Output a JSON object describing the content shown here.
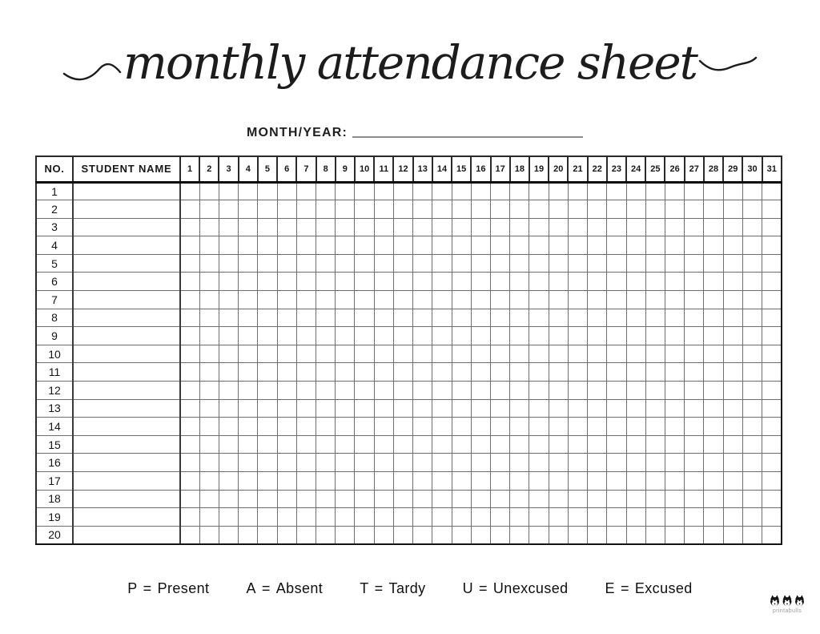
{
  "title": "monthly attendance sheet",
  "month_year": {
    "label": "MONTH/YEAR:",
    "value": ""
  },
  "table": {
    "headers": {
      "no": "NO.",
      "student_name": "STUDENT NAME"
    },
    "days": [
      "1",
      "2",
      "3",
      "4",
      "5",
      "6",
      "7",
      "8",
      "9",
      "10",
      "11",
      "12",
      "13",
      "14",
      "15",
      "16",
      "17",
      "18",
      "19",
      "20",
      "21",
      "22",
      "23",
      "24",
      "25",
      "26",
      "27",
      "28",
      "29",
      "30",
      "31"
    ],
    "rows": [
      {
        "no": "1",
        "name": ""
      },
      {
        "no": "2",
        "name": ""
      },
      {
        "no": "3",
        "name": ""
      },
      {
        "no": "4",
        "name": ""
      },
      {
        "no": "5",
        "name": ""
      },
      {
        "no": "6",
        "name": ""
      },
      {
        "no": "7",
        "name": ""
      },
      {
        "no": "8",
        "name": ""
      },
      {
        "no": "9",
        "name": ""
      },
      {
        "no": "10",
        "name": ""
      },
      {
        "no": "11",
        "name": ""
      },
      {
        "no": "12",
        "name": ""
      },
      {
        "no": "13",
        "name": ""
      },
      {
        "no": "14",
        "name": ""
      },
      {
        "no": "15",
        "name": ""
      },
      {
        "no": "16",
        "name": ""
      },
      {
        "no": "17",
        "name": ""
      },
      {
        "no": "18",
        "name": ""
      },
      {
        "no": "19",
        "name": ""
      },
      {
        "no": "20",
        "name": ""
      }
    ]
  },
  "legend": {
    "separator": "=",
    "items": [
      {
        "code": "P",
        "meaning": "Present"
      },
      {
        "code": "A",
        "meaning": "Absent"
      },
      {
        "code": "T",
        "meaning": "Tardy"
      },
      {
        "code": "U",
        "meaning": "Unexcused"
      },
      {
        "code": "E",
        "meaning": "Excused"
      }
    ]
  },
  "brand": {
    "name": "printabulls"
  },
  "colors": {
    "ink": "#1b1b1b",
    "grid_line": "#6e6e6e",
    "strong_line": "#0d0d0d",
    "underline": "#8c8c8c",
    "brand_text": "#9b9b9b",
    "background": "#ffffff"
  }
}
